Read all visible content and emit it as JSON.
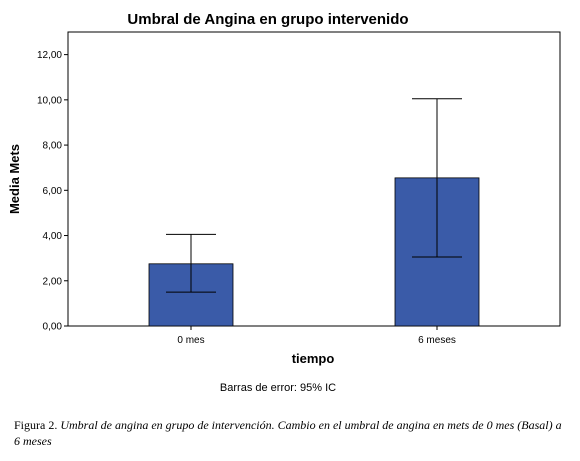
{
  "chart_data": {
    "type": "bar",
    "title": "Umbral de Angina en grupo intervenido",
    "xlabel": "tiempo",
    "ylabel": "Media Mets",
    "categories": [
      "0 mes",
      "6 meses"
    ],
    "values": [
      2.75,
      6.55
    ],
    "error_bars": [
      {
        "low": 1.5,
        "high": 4.05
      },
      {
        "low": 3.05,
        "high": 10.05
      }
    ],
    "ylim": [
      0,
      13
    ],
    "yticks": [
      "0,00",
      "2,00",
      "4,00",
      "6,00",
      "8,00",
      "10,00",
      "12,00"
    ],
    "ytick_values": [
      0,
      2,
      4,
      6,
      8,
      10,
      12
    ],
    "bar_color": "#3a5ba8",
    "grid": false,
    "note": "Barras de error: 95% IC"
  },
  "caption": {
    "label": "Figura 2.",
    "text": "Umbral de angina en grupo de intervención. Cambio en el umbral de angina en mets de 0 mes (Basal) a 6 meses"
  }
}
